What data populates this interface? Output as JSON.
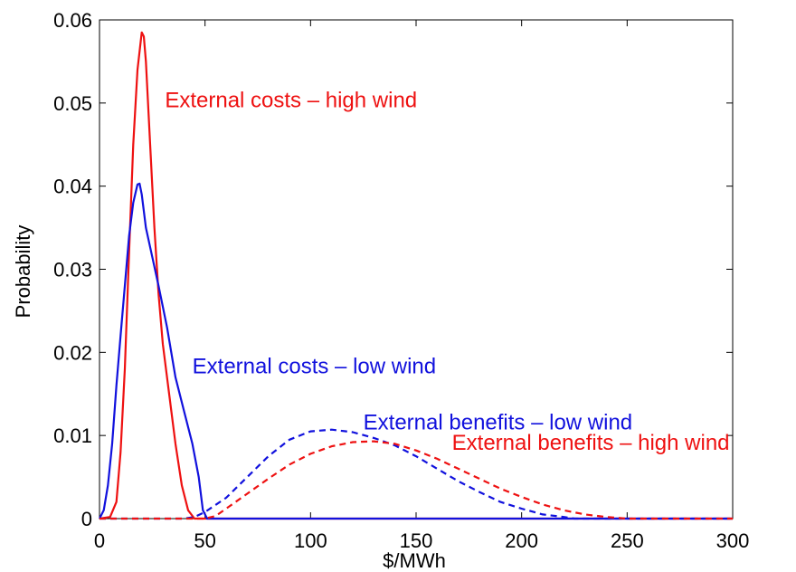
{
  "chart_data": {
    "type": "line",
    "title": "",
    "xlabel": "$/MWh",
    "ylabel": "Probability",
    "xlim": [
      0,
      300
    ],
    "ylim": [
      0,
      0.06
    ],
    "xticks": [
      0,
      50,
      100,
      150,
      200,
      250,
      300
    ],
    "xtick_labels": [
      "0",
      "50",
      "100",
      "150",
      "200",
      "250",
      "300"
    ],
    "yticks": [
      0,
      0.01,
      0.02,
      0.03,
      0.04,
      0.05,
      0.06
    ],
    "ytick_labels": [
      "0",
      "0.01",
      "0.02",
      "0.03",
      "0.04",
      "0.05",
      "0.06"
    ],
    "grid": false,
    "legend": "none",
    "series": [
      {
        "color": "#ee1111",
        "dash": "solid",
        "points": [
          [
            0,
            0
          ],
          [
            5,
            0.0002
          ],
          [
            8,
            0.002
          ],
          [
            10,
            0.008
          ],
          [
            12,
            0.018
          ],
          [
            14,
            0.032
          ],
          [
            16,
            0.045
          ],
          [
            18,
            0.054
          ],
          [
            20,
            0.0585
          ],
          [
            21,
            0.058
          ],
          [
            22,
            0.055
          ],
          [
            24,
            0.045
          ],
          [
            26,
            0.035
          ],
          [
            28,
            0.027
          ],
          [
            30,
            0.021
          ],
          [
            33,
            0.015
          ],
          [
            36,
            0.009
          ],
          [
            39,
            0.004
          ],
          [
            42,
            0.001
          ],
          [
            45,
            0
          ],
          [
            300,
            0
          ]
        ]
      },
      {
        "color": "#1111dd",
        "dash": "solid",
        "points": [
          [
            0,
            0
          ],
          [
            2,
            0.001
          ],
          [
            4,
            0.004
          ],
          [
            6,
            0.009
          ],
          [
            8,
            0.016
          ],
          [
            10,
            0.022
          ],
          [
            12,
            0.028
          ],
          [
            14,
            0.034
          ],
          [
            16,
            0.038
          ],
          [
            18,
            0.0402
          ],
          [
            19,
            0.0403
          ],
          [
            20,
            0.039
          ],
          [
            22,
            0.035
          ],
          [
            25,
            0.0315
          ],
          [
            28,
            0.028
          ],
          [
            32,
            0.023
          ],
          [
            36,
            0.017
          ],
          [
            40,
            0.013
          ],
          [
            44,
            0.009
          ],
          [
            47,
            0.005
          ],
          [
            49,
            0.001
          ],
          [
            51,
            0
          ],
          [
            300,
            0
          ]
        ]
      },
      {
        "color": "#1111dd",
        "dash": "dashed",
        "points": [
          [
            0,
            0
          ],
          [
            40,
            0
          ],
          [
            45,
            0.0002
          ],
          [
            50,
            0.0008
          ],
          [
            60,
            0.0025
          ],
          [
            70,
            0.005
          ],
          [
            80,
            0.0075
          ],
          [
            90,
            0.0095
          ],
          [
            100,
            0.0105
          ],
          [
            110,
            0.0107
          ],
          [
            120,
            0.0104
          ],
          [
            130,
            0.0097
          ],
          [
            140,
            0.0088
          ],
          [
            150,
            0.0075
          ],
          [
            160,
            0.006
          ],
          [
            170,
            0.0045
          ],
          [
            180,
            0.0032
          ],
          [
            190,
            0.002
          ],
          [
            200,
            0.0012
          ],
          [
            210,
            0.0005
          ],
          [
            220,
            0.0002
          ],
          [
            225,
            0
          ],
          [
            300,
            0
          ]
        ]
      },
      {
        "color": "#ee1111",
        "dash": "dashed",
        "points": [
          [
            0,
            0
          ],
          [
            50,
            0
          ],
          [
            55,
            0.0003
          ],
          [
            60,
            0.0012
          ],
          [
            70,
            0.003
          ],
          [
            80,
            0.0048
          ],
          [
            90,
            0.0065
          ],
          [
            100,
            0.0078
          ],
          [
            110,
            0.0087
          ],
          [
            120,
            0.0092
          ],
          [
            130,
            0.0093
          ],
          [
            140,
            0.009
          ],
          [
            150,
            0.0082
          ],
          [
            160,
            0.0072
          ],
          [
            170,
            0.006
          ],
          [
            180,
            0.0048
          ],
          [
            190,
            0.0036
          ],
          [
            200,
            0.0026
          ],
          [
            210,
            0.0017
          ],
          [
            220,
            0.001
          ],
          [
            230,
            0.0005
          ],
          [
            240,
            0.0002
          ],
          [
            250,
            0
          ],
          [
            300,
            0
          ]
        ]
      }
    ],
    "annotations": [
      {
        "text": "External costs – high wind",
        "color": "#ee1111",
        "x": 31,
        "y": 0.0495
      },
      {
        "text": "External costs – low wind",
        "color": "#1111dd",
        "x": 44,
        "y": 0.0175
      },
      {
        "text": "External benefits – low wind",
        "color": "#1111dd",
        "x": 125,
        "y": 0.0107
      },
      {
        "text": "External benefits – high wind",
        "color": "#ee1111",
        "x": 167,
        "y": 0.0083
      }
    ]
  }
}
